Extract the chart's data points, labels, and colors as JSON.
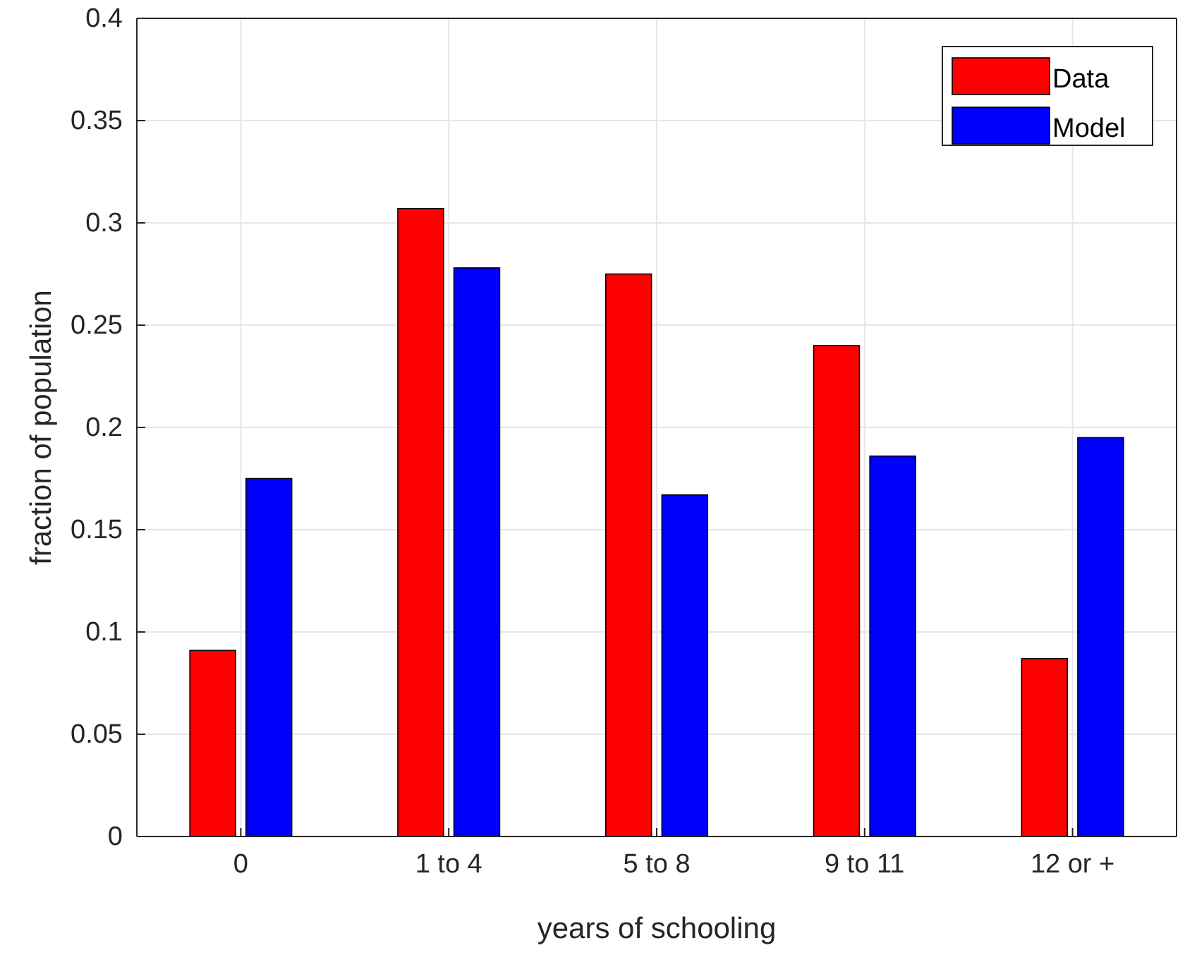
{
  "chart_data": {
    "type": "bar",
    "xlabel": "years of schooling",
    "ylabel": "fraction of population",
    "categories": [
      "0",
      "1 to 4",
      "5 to 8",
      "9 to 11",
      "12 or +"
    ],
    "series": [
      {
        "name": "Data",
        "color": "#ff0000",
        "values": [
          0.091,
          0.307,
          0.275,
          0.24,
          0.087
        ]
      },
      {
        "name": "Model",
        "color": "#0000ff",
        "values": [
          0.175,
          0.278,
          0.167,
          0.186,
          0.195
        ]
      }
    ],
    "ylim": [
      0,
      0.4
    ],
    "yticks": [
      0,
      0.05,
      0.1,
      0.15,
      0.2,
      0.25,
      0.3,
      0.35,
      0.4
    ],
    "grid": true,
    "legend": "top right"
  }
}
